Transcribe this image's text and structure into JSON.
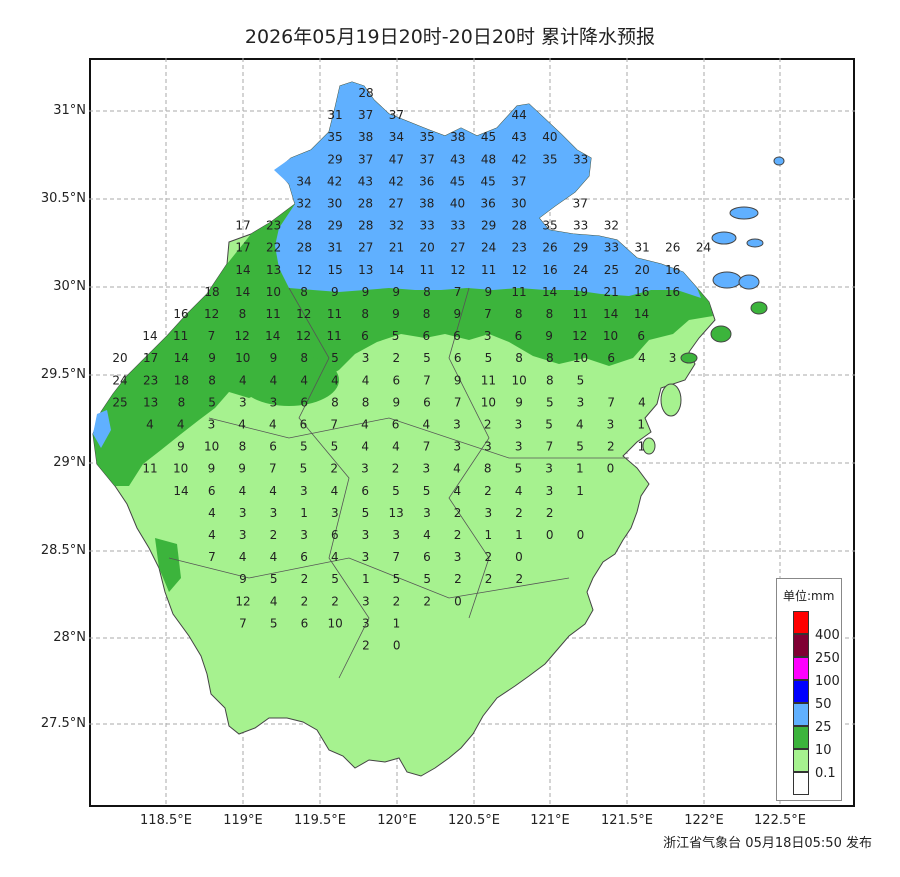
{
  "title": "2026年05月19日20时-20日20时 累计降水预报",
  "footer": "浙江省气象台 05月18日05:50 发布",
  "axes": {
    "lat_labels": [
      "31°N",
      "30.5°N",
      "30°N",
      "29.5°N",
      "29°N",
      "28.5°N",
      "28°N",
      "27.5°N"
    ],
    "lon_labels": [
      "118.5°E",
      "119°E",
      "119.5°E",
      "120°E",
      "120.5°E",
      "121°E",
      "121.5°E",
      "122°E",
      "122.5°E"
    ]
  },
  "legend": {
    "title": "单位:mm",
    "levels": [
      {
        "label": "400",
        "color": "#ff0000"
      },
      {
        "label": "250",
        "color": "#7f0033"
      },
      {
        "label": "100",
        "color": "#ff00ff"
      },
      {
        "label": "50",
        "color": "#0000ff"
      },
      {
        "label": "25",
        "color": "#60b0ff"
      },
      {
        "label": "10",
        "color": "#3cb43c"
      },
      {
        "label": "0.1",
        "color": "#a6f28f"
      },
      {
        "label": "",
        "color": "#ffffff"
      }
    ]
  },
  "colors": {
    "heavy": "#60b0ff",
    "moderate": "#3cb43c",
    "light": "#a6f28f",
    "border": "#444444"
  },
  "rows": [
    [
      "28"
    ],
    [
      "31",
      "37",
      "37",
      "",
      "",
      "",
      "44"
    ],
    [
      "35",
      "38",
      "34",
      "35",
      "38",
      "45",
      "43",
      "40"
    ],
    [
      "29",
      "37",
      "47",
      "37",
      "43",
      "48",
      "42",
      "35",
      "33"
    ],
    [
      "34",
      "42",
      "43",
      "42",
      "36",
      "45",
      "45",
      "37"
    ],
    [
      "32",
      "30",
      "28",
      "27",
      "38",
      "40",
      "36",
      "30",
      "",
      "37"
    ],
    [
      "17",
      "23",
      "28",
      "29",
      "28",
      "32",
      "33",
      "33",
      "29",
      "28",
      "35",
      "33",
      "32"
    ],
    [
      "17",
      "22",
      "28",
      "31",
      "27",
      "21",
      "20",
      "27",
      "24",
      "23",
      "26",
      "29",
      "33",
      "31",
      "26",
      "24"
    ],
    [
      "14",
      "13",
      "12",
      "15",
      "13",
      "14",
      "11",
      "12",
      "11",
      "12",
      "16",
      "24",
      "25",
      "20",
      "16"
    ],
    [
      "18",
      "14",
      "10",
      "8",
      "9",
      "9",
      "9",
      "8",
      "7",
      "9",
      "11",
      "14",
      "19",
      "21",
      "16",
      "16"
    ],
    [
      "16",
      "12",
      "8",
      "11",
      "12",
      "11",
      "8",
      "9",
      "8",
      "9",
      "7",
      "8",
      "8",
      "11",
      "14",
      "14"
    ],
    [
      "14",
      "11",
      "7",
      "12",
      "14",
      "12",
      "11",
      "6",
      "5",
      "6",
      "6",
      "3",
      "6",
      "9",
      "12",
      "10",
      "6"
    ],
    [
      "20",
      "17",
      "14",
      "9",
      "10",
      "9",
      "8",
      "5",
      "3",
      "2",
      "5",
      "6",
      "5",
      "8",
      "8",
      "10",
      "6",
      "4",
      "3"
    ],
    [
      "24",
      "23",
      "18",
      "8",
      "4",
      "4",
      "4",
      "4",
      "4",
      "6",
      "7",
      "9",
      "11",
      "10",
      "8",
      "5"
    ],
    [
      "25",
      "13",
      "8",
      "5",
      "3",
      "3",
      "6",
      "8",
      "8",
      "9",
      "6",
      "7",
      "10",
      "9",
      "5",
      "3",
      "7",
      "4"
    ],
    [
      "4",
      "4",
      "3",
      "4",
      "4",
      "6",
      "7",
      "4",
      "6",
      "4",
      "3",
      "2",
      "3",
      "5",
      "4",
      "3",
      "1"
    ],
    [
      "9",
      "10",
      "8",
      "6",
      "5",
      "5",
      "4",
      "4",
      "7",
      "3",
      "3",
      "3",
      "7",
      "5",
      "2",
      "1"
    ],
    [
      "11",
      "10",
      "9",
      "9",
      "7",
      "5",
      "2",
      "3",
      "2",
      "3",
      "4",
      "8",
      "5",
      "3",
      "1",
      "0"
    ],
    [
      "14",
      "6",
      "4",
      "4",
      "3",
      "4",
      "6",
      "5",
      "5",
      "4",
      "2",
      "4",
      "3",
      "1"
    ],
    [
      "4",
      "3",
      "3",
      "1",
      "3",
      "5",
      "13",
      "3",
      "2",
      "3",
      "2",
      "2"
    ],
    [
      "4",
      "3",
      "2",
      "3",
      "6",
      "3",
      "3",
      "4",
      "2",
      "1",
      "1",
      "0",
      "0"
    ],
    [
      "7",
      "4",
      "4",
      "6",
      "4",
      "3",
      "7",
      "6",
      "3",
      "2",
      "0"
    ],
    [
      "9",
      "5",
      "2",
      "5",
      "1",
      "5",
      "5",
      "2",
      "2",
      "2"
    ],
    [
      "12",
      "4",
      "2",
      "2",
      "3",
      "2",
      "2",
      "0"
    ],
    [
      "7",
      "5",
      "6",
      "10",
      "3",
      "1"
    ],
    [
      "2",
      "0"
    ]
  ]
}
